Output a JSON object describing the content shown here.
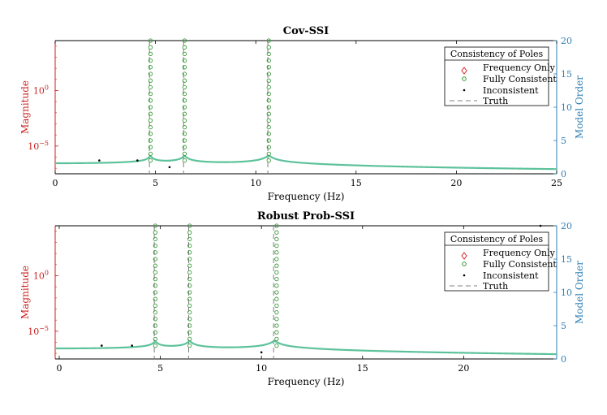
{
  "colors": {
    "magnitude_curve": "#5dc29c",
    "fully_consistent": "#3c9a3c",
    "frequency_only": "#d62728",
    "inconsistent": "#000000",
    "truth": "#7f7f7f",
    "left_axis": "#cc1f1f",
    "right_axis": "#2f7fb4"
  },
  "chart_data": [
    {
      "type": "scatter",
      "title": "Cov-SSI",
      "xlabel": "Frequency (Hz)",
      "ylabel_left": "Magnitude",
      "ylabel_right": "Model Order",
      "xlim": [
        0,
        25
      ],
      "xticks": [
        "0",
        "5",
        "10",
        "15",
        "20",
        "25"
      ],
      "yticks_left": [
        {
          "base": "10",
          "exp": "0",
          "value": 1
        },
        {
          "base": "10",
          "exp": "−5",
          "value": 1e-05
        }
      ],
      "ylim_left_log10": [
        -7.5,
        4.5
      ],
      "ylim_right": [
        0,
        20
      ],
      "yticks_right": [
        "0",
        "5",
        "10",
        "15",
        "20"
      ],
      "truth_frequencies": [
        4.7,
        6.4,
        10.6
      ],
      "modes": [
        4.75,
        6.45,
        10.65
      ],
      "damping": [
        0.014,
        0.012,
        0.011
      ],
      "curve_base_log10": -6.55,
      "fully_consistent": [
        {
          "frequency": 4.75,
          "orders": [
            2,
            3,
            4,
            5,
            6,
            7,
            8,
            9,
            10,
            11,
            12,
            13,
            14,
            15,
            16,
            17,
            18,
            19,
            20
          ]
        },
        {
          "frequency": 6.45,
          "orders": [
            2,
            3,
            4,
            5,
            6,
            7,
            8,
            9,
            10,
            11,
            12,
            13,
            14,
            15,
            16,
            17,
            18,
            19,
            20
          ]
        },
        {
          "frequency": 10.65,
          "orders": [
            2,
            3,
            4,
            5,
            6,
            7,
            8,
            9,
            10,
            11,
            12,
            13,
            14,
            15,
            16,
            17,
            18,
            19,
            20
          ]
        }
      ],
      "frequency_only": [],
      "inconsistent": [
        {
          "frequency": 2.2,
          "order": 2
        },
        {
          "frequency": 4.1,
          "order": 2
        },
        {
          "frequency": 5.7,
          "order": 1
        }
      ],
      "legend": {
        "title": "Consistency of Poles",
        "entries": [
          "Frequency Only",
          "Fully Consistent",
          "Inconsistent",
          "Truth"
        ],
        "position": "top-right"
      },
      "grid": false
    },
    {
      "type": "scatter",
      "title": "Robust Prob-SSI",
      "xlabel": "Frequency (Hz)",
      "ylabel_left": "Magnitude",
      "ylabel_right": "Model Order",
      "xlim": [
        -0.2,
        24.6
      ],
      "xticks": [
        "0",
        "5",
        "10",
        "15",
        "20"
      ],
      "yticks_left": [
        {
          "base": "10",
          "exp": "0",
          "value": 1
        },
        {
          "base": "10",
          "exp": "−5",
          "value": 1e-05
        }
      ],
      "ylim_left_log10": [
        -7.5,
        4.5
      ],
      "ylim_right": [
        0,
        20
      ],
      "yticks_right": [
        "0",
        "5",
        "10",
        "15",
        "20"
      ],
      "truth_frequencies": [
        4.7,
        6.4,
        10.6
      ],
      "modes": [
        4.75,
        6.45,
        10.65
      ],
      "damping": [
        0.014,
        0.012,
        0.011
      ],
      "curve_base_log10": -6.55,
      "fully_consistent": [
        {
          "frequency": 4.75,
          "orders": [
            2,
            3,
            4,
            5,
            6,
            7,
            8,
            9,
            10,
            11,
            12,
            13,
            14,
            15,
            16,
            17,
            18,
            19,
            20
          ]
        },
        {
          "frequency": 6.45,
          "orders": [
            2,
            3,
            4,
            5,
            6,
            7,
            8,
            9,
            10,
            11,
            12,
            13,
            14,
            15,
            16,
            17,
            18,
            19,
            20
          ]
        },
        {
          "frequency": 10.75,
          "orders": [
            2,
            3,
            4,
            5,
            6,
            7,
            8,
            9,
            10,
            11,
            12,
            13,
            14,
            15,
            16,
            17,
            18,
            19,
            20
          ]
        }
      ],
      "frequency_only": [],
      "inconsistent": [
        {
          "frequency": 2.1,
          "order": 2
        },
        {
          "frequency": 3.6,
          "order": 2
        },
        {
          "frequency": 10.0,
          "order": 1
        },
        {
          "frequency": 23.8,
          "order": 20
        }
      ],
      "legend": {
        "title": "Consistency of Poles",
        "entries": [
          "Frequency Only",
          "Fully Consistent",
          "Inconsistent",
          "Truth"
        ],
        "position": "top-right"
      },
      "grid": false
    }
  ]
}
